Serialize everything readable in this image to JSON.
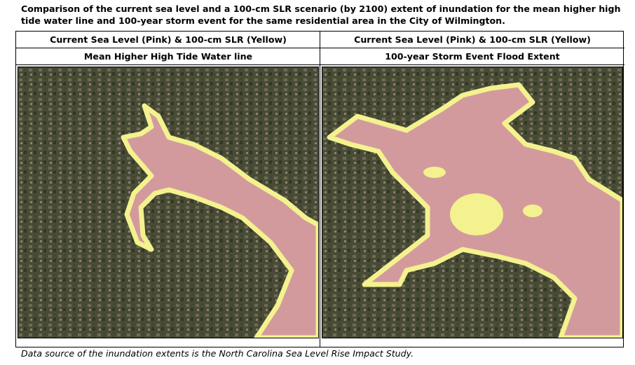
{
  "header": {
    "title_lines": [
      "Comparison of the current sea level and a 100-cm SLR scenario (by 2100) extent of inundation for the mean higher high",
      "tide water line and 100-year storm event for the same residential area in the City of Wilmington."
    ]
  },
  "panels": [
    {
      "heading": "Current Sea Level (Pink) & 100-cm SLR (Yellow)",
      "subheading": "Mean Higher High Tide Water line"
    },
    {
      "heading": "Current Sea Level (Pink) & 100-cm SLR (Yellow)",
      "subheading": "100-year Storm Event Flood Extent"
    }
  ],
  "caption": "Data source of the inundation extents is the North Carolina Sea Level Rise Impact Study."
}
